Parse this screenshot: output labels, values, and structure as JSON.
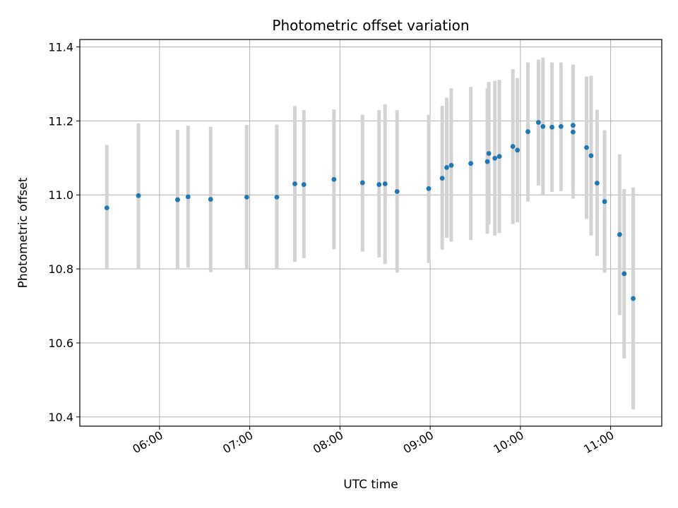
{
  "chart_data": {
    "type": "scatter",
    "title": "Photometric offset variation",
    "xlabel": "UTC time",
    "ylabel": "Photometric offset",
    "x_ticks": [
      "06:00",
      "07:00",
      "08:00",
      "09:00",
      "10:00",
      "11:00"
    ],
    "y_ticks": [
      "10.4",
      "10.6",
      "10.8",
      "11.0",
      "11.2",
      "11.4"
    ],
    "xlim": [
      "05:07",
      "11:34"
    ],
    "ylim": [
      10.375,
      11.42
    ],
    "grid": true,
    "colors": {
      "point": "#1f77b4",
      "errorbar": "#d3d3d3",
      "grid": "#b0b0b0"
    },
    "series": [
      {
        "points": [
          {
            "x": "05:25",
            "y": 10.965,
            "ylo": 10.8,
            "yhi": 11.135
          },
          {
            "x": "05:46",
            "y": 10.998,
            "ylo": 10.8,
            "yhi": 11.193
          },
          {
            "x": "06:12",
            "y": 10.987,
            "ylo": 10.8,
            "yhi": 11.176
          },
          {
            "x": "06:19",
            "y": 10.995,
            "ylo": 10.803,
            "yhi": 11.187
          },
          {
            "x": "06:34",
            "y": 10.988,
            "ylo": 10.791,
            "yhi": 11.184
          },
          {
            "x": "06:58",
            "y": 10.994,
            "ylo": 10.8,
            "yhi": 11.189
          },
          {
            "x": "07:18",
            "y": 10.994,
            "ylo": 10.799,
            "yhi": 11.19
          },
          {
            "x": "07:30",
            "y": 11.03,
            "ylo": 10.819,
            "yhi": 11.24
          },
          {
            "x": "07:36",
            "y": 11.028,
            "ylo": 10.829,
            "yhi": 11.229
          },
          {
            "x": "07:56",
            "y": 11.042,
            "ylo": 10.853,
            "yhi": 11.231
          },
          {
            "x": "08:15",
            "y": 11.033,
            "ylo": 10.847,
            "yhi": 11.217
          },
          {
            "x": "08:26",
            "y": 11.028,
            "ylo": 10.831,
            "yhi": 11.229
          },
          {
            "x": "08:30",
            "y": 11.03,
            "ylo": 10.813,
            "yhi": 11.245
          },
          {
            "x": "08:38",
            "y": 11.009,
            "ylo": 10.79,
            "yhi": 11.229
          },
          {
            "x": "08:59",
            "y": 11.017,
            "ylo": 10.816,
            "yhi": 11.217
          },
          {
            "x": "09:08",
            "y": 11.045,
            "ylo": 10.852,
            "yhi": 11.241
          },
          {
            "x": "09:11",
            "y": 11.074,
            "ylo": 10.884,
            "yhi": 11.263
          },
          {
            "x": "09:14",
            "y": 11.08,
            "ylo": 10.874,
            "yhi": 11.288
          },
          {
            "x": "09:27",
            "y": 11.085,
            "ylo": 10.878,
            "yhi": 11.292
          },
          {
            "x": "09:38",
            "y": 11.09,
            "ylo": 10.895,
            "yhi": 11.288
          },
          {
            "x": "09:39",
            "y": 11.112,
            "ylo": 10.92,
            "yhi": 11.305
          },
          {
            "x": "09:43",
            "y": 11.099,
            "ylo": 10.89,
            "yhi": 11.308
          },
          {
            "x": "09:46",
            "y": 11.104,
            "ylo": 10.897,
            "yhi": 11.311
          },
          {
            "x": "09:55",
            "y": 11.131,
            "ylo": 10.921,
            "yhi": 11.34
          },
          {
            "x": "09:58",
            "y": 11.121,
            "ylo": 10.926,
            "yhi": 11.316
          },
          {
            "x": "10:05",
            "y": 11.171,
            "ylo": 10.982,
            "yhi": 11.358
          },
          {
            "x": "10:12",
            "y": 11.196,
            "ylo": 11.025,
            "yhi": 11.366
          },
          {
            "x": "10:15",
            "y": 11.185,
            "ylo": 11.0,
            "yhi": 11.371
          },
          {
            "x": "10:21",
            "y": 11.183,
            "ylo": 11.008,
            "yhi": 11.358
          },
          {
            "x": "10:27",
            "y": 11.185,
            "ylo": 11.01,
            "yhi": 11.358
          },
          {
            "x": "10:35",
            "y": 11.17,
            "ylo": 10.99,
            "yhi": 11.35
          },
          {
            "x": "10:35",
            "y": 11.188,
            "ylo": 11.025,
            "yhi": 11.352
          },
          {
            "x": "10:44",
            "y": 11.128,
            "ylo": 10.935,
            "yhi": 11.32
          },
          {
            "x": "10:47",
            "y": 11.106,
            "ylo": 10.89,
            "yhi": 11.322
          },
          {
            "x": "10:51",
            "y": 11.032,
            "ylo": 10.835,
            "yhi": 11.23
          },
          {
            "x": "10:56",
            "y": 10.982,
            "ylo": 10.79,
            "yhi": 11.175
          },
          {
            "x": "11:06",
            "y": 10.893,
            "ylo": 10.675,
            "yhi": 11.11
          },
          {
            "x": "11:09",
            "y": 10.787,
            "ylo": 10.558,
            "yhi": 11.016
          },
          {
            "x": "11:15",
            "y": 10.72,
            "ylo": 10.42,
            "yhi": 11.02
          }
        ]
      }
    ]
  }
}
